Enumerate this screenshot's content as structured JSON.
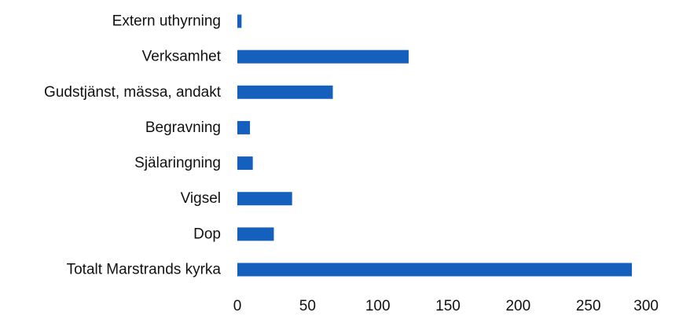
{
  "chart_data": {
    "type": "bar",
    "orientation": "horizontal",
    "categories": [
      "Extern uthyrning",
      "Verksamhet",
      "Gudstjänst, mässa, andakt",
      "Begravning",
      "Själaringning",
      "Vigsel",
      "Dop",
      "Totalt Marstrands kyrka"
    ],
    "values": [
      3,
      122,
      68,
      9,
      11,
      39,
      26,
      281
    ],
    "xlim": [
      0,
      300
    ],
    "xticks": [
      "0",
      "50",
      "100",
      "150",
      "200",
      "250",
      "300"
    ],
    "bar_color": "#1560BD",
    "grid": false,
    "legend": "none"
  }
}
